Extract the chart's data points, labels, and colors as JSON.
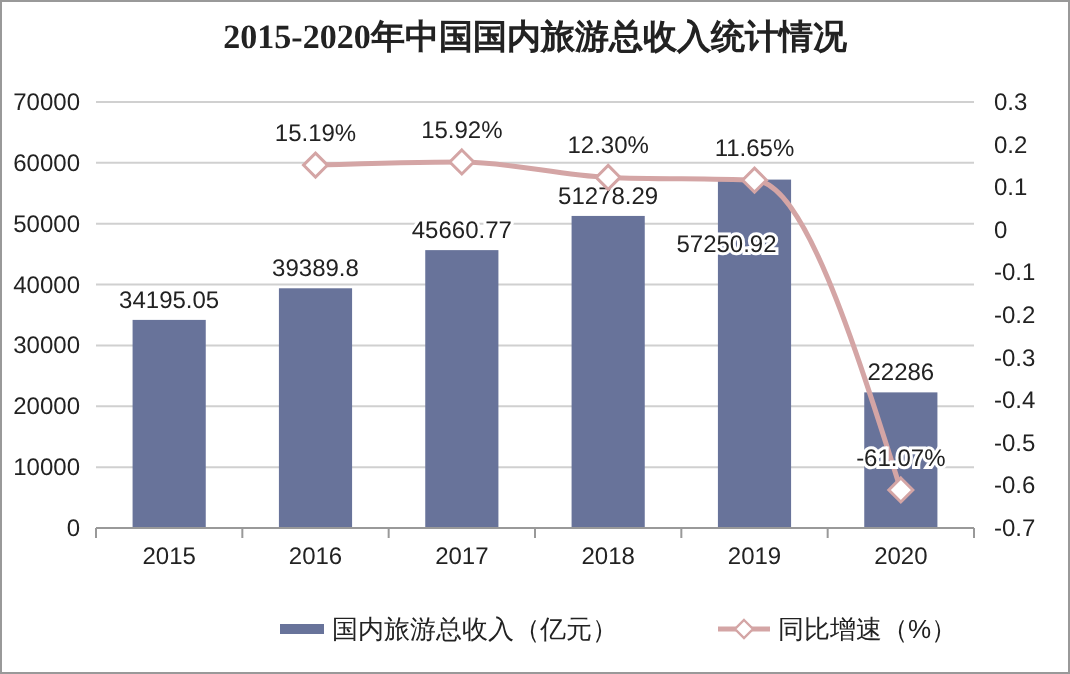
{
  "chart_data": {
    "type": "bar",
    "title": "2015-2020年中国国内旅游总收入统计情况",
    "categories": [
      "2015",
      "2016",
      "2017",
      "2018",
      "2019",
      "2020"
    ],
    "series": [
      {
        "name": "国内旅游总收入（亿元）",
        "color": "#68739a",
        "values": [
          34195.05,
          39389.8,
          45660.77,
          51278.29,
          57250.92,
          22286
        ],
        "value_labels": [
          "34195.05",
          "39389.8",
          "45660.77",
          "51278.29",
          "57250.92",
          "22286"
        ]
      },
      {
        "name": "同比增速（%）",
        "type": "line",
        "axis": "y2",
        "color": "#d4a5a5",
        "marker": "diamond",
        "values": [
          null,
          0.1519,
          0.1592,
          0.123,
          0.1165,
          -0.6107
        ],
        "value_labels": [
          null,
          "15.19%",
          "15.92%",
          "12.30%",
          "11.65%",
          "-61.07%"
        ]
      }
    ],
    "ylim": [
      0,
      70000
    ],
    "yticks": [
      0,
      10000,
      20000,
      30000,
      40000,
      50000,
      60000,
      70000
    ],
    "y2lim": [
      -0.7,
      0.3
    ],
    "y2ticks": [
      {
        "value": -0.7,
        "label": "-0.7"
      },
      {
        "value": -0.6,
        "label": "-0.6"
      },
      {
        "value": -0.5,
        "label": "-0.5"
      },
      {
        "value": -0.4,
        "label": "-0.4"
      },
      {
        "value": -0.3,
        "label": "-0.3"
      },
      {
        "value": -0.2,
        "label": "-0.2"
      },
      {
        "value": -0.1,
        "label": "-0.1"
      },
      {
        "value": 0,
        "label": "0"
      },
      {
        "value": 0.1,
        "label": "0.1"
      },
      {
        "value": 0.2,
        "label": "0.2"
      },
      {
        "value": 0.3,
        "label": "0.3"
      }
    ],
    "grid": "y",
    "legend": "bottom"
  }
}
